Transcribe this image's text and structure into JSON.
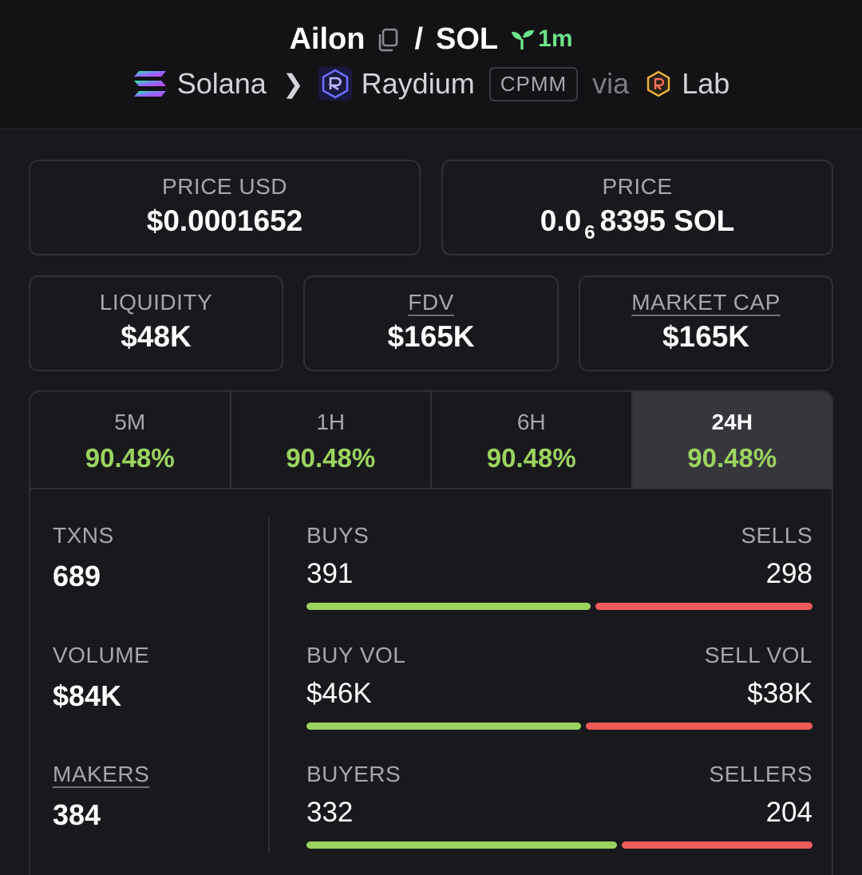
{
  "header": {
    "token": "Ailon",
    "slash": "/",
    "quote": "SOL",
    "age": "1m",
    "chain": "Solana",
    "dex": "Raydium",
    "pool_type": "CPMM",
    "via": "via",
    "launchpad": "Lab"
  },
  "prices": {
    "usd_label": "PRICE USD",
    "usd_value": "$0.0001652",
    "native_label": "PRICE",
    "native_prefix": "0.0",
    "native_zeros": "6",
    "native_value": "8395 SOL"
  },
  "metrics": [
    {
      "label": "LIQUIDITY",
      "value": "$48K"
    },
    {
      "label": "FDV",
      "value": "$165K"
    },
    {
      "label": "MARKET CAP",
      "value": "$165K"
    }
  ],
  "periods": [
    {
      "label": "5M",
      "change": "90.48%"
    },
    {
      "label": "1H",
      "change": "90.48%"
    },
    {
      "label": "6H",
      "change": "90.48%"
    },
    {
      "label": "24H",
      "change": "90.48%"
    }
  ],
  "stats": {
    "txns": {
      "label": "TXNS",
      "value": "689"
    },
    "volume": {
      "label": "VOLUME",
      "value": "$84K"
    },
    "makers": {
      "label": "MAKERS",
      "value": "384"
    },
    "buys": {
      "label": "BUYS",
      "value": "391"
    },
    "sells": {
      "label": "SELLS",
      "value": "298"
    },
    "buy_vol": {
      "label": "BUY VOL",
      "value": "$46K"
    },
    "sell_vol": {
      "label": "SELL VOL",
      "value": "$38K"
    },
    "buyers": {
      "label": "BUYERS",
      "value": "332"
    },
    "sellers": {
      "label": "SELLERS",
      "value": "204"
    }
  },
  "ratios": {
    "txns_buy_fraction": 0.567,
    "volume_buy_fraction": 0.548,
    "makers_buy_fraction": 0.619
  },
  "colors": {
    "positive": "#9bd35f",
    "negative": "#ef5a5a",
    "age": "#6ce38a"
  },
  "icons": {
    "copy": "copy-icon",
    "age": "seedling-icon",
    "chain": "solana-icon",
    "separator": "chevron-right-icon",
    "dex": "raydium-icon",
    "launchpad": "lab-icon"
  }
}
